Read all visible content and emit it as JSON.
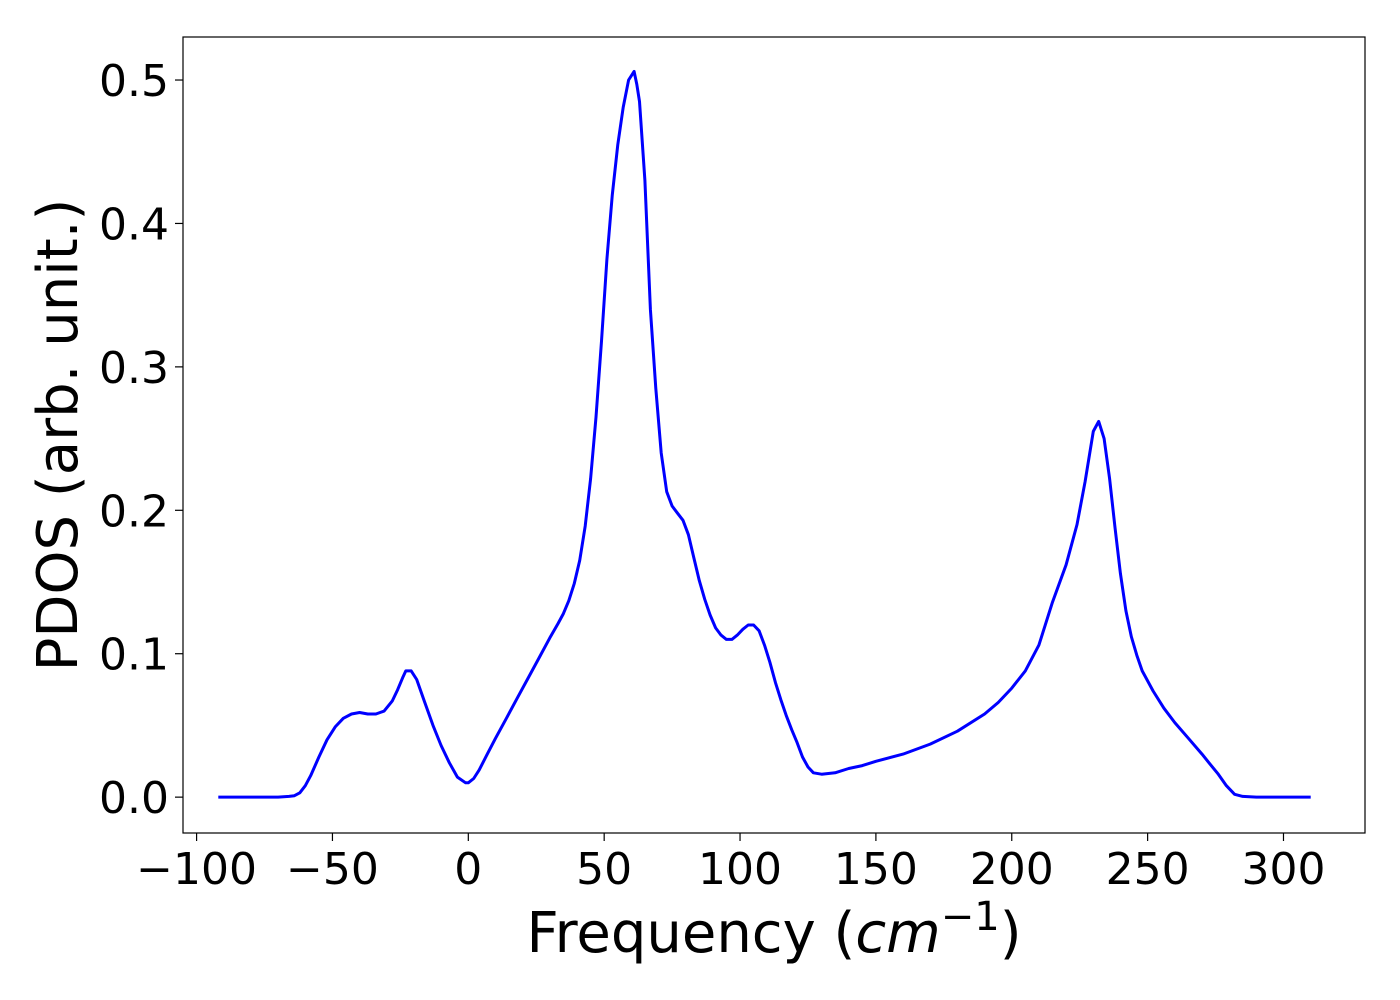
{
  "chart_data": {
    "type": "line",
    "title": "",
    "xlabel": "Frequency (",
    "xlabel_math_base": "cm",
    "xlabel_math_sup": "−1",
    "xlabel_suffix": ")",
    "ylabel": "PDOS (arb. unit.)",
    "xlim": [
      -105,
      330
    ],
    "ylim": [
      -0.025,
      0.53
    ],
    "xticks": [
      -100,
      -50,
      0,
      50,
      100,
      150,
      200,
      250,
      300
    ],
    "xtick_labels": [
      "−100",
      "−50",
      "0",
      "50",
      "100",
      "150",
      "200",
      "250",
      "300"
    ],
    "yticks": [
      0.0,
      0.1,
      0.2,
      0.3,
      0.4,
      0.5
    ],
    "ytick_labels": [
      "0.0",
      "0.1",
      "0.2",
      "0.3",
      "0.4",
      "0.5"
    ],
    "grid": false,
    "legend": "none",
    "series": [
      {
        "color": "#0000ff",
        "x": [
          -92,
          -80,
          -70,
          -66,
          -64,
          -62,
          -60,
          -58,
          -55,
          -52,
          -49,
          -46,
          -43,
          -40,
          -37,
          -34,
          -31,
          -28,
          -26,
          -24,
          -23,
          -21,
          -19,
          -16,
          -13,
          -10,
          -7,
          -4,
          -1,
          0,
          2,
          4,
          7,
          10,
          14,
          18,
          22,
          26,
          30,
          33,
          35,
          37,
          39,
          41,
          43,
          45,
          47,
          49,
          51,
          53,
          55,
          57,
          59,
          61,
          62,
          63,
          65,
          67,
          69,
          71,
          73,
          75,
          77,
          79,
          81,
          83,
          85,
          87,
          89,
          91,
          93,
          95,
          97,
          99,
          101,
          103,
          105,
          107,
          109,
          111,
          113,
          115,
          117,
          119,
          121,
          123,
          125,
          127,
          130,
          135,
          140,
          145,
          150,
          160,
          170,
          180,
          190,
          195,
          200,
          205,
          210,
          215,
          220,
          224,
          227,
          230,
          232,
          234,
          236,
          238,
          240,
          242,
          244,
          246,
          248,
          252,
          256,
          260,
          265,
          270,
          273,
          276,
          279,
          282,
          285,
          290,
          300,
          310
        ],
        "values": [
          0.0,
          0.0,
          0.0,
          0.0005,
          0.001,
          0.003,
          0.008,
          0.015,
          0.028,
          0.04,
          0.049,
          0.055,
          0.058,
          0.059,
          0.058,
          0.058,
          0.06,
          0.067,
          0.075,
          0.084,
          0.088,
          0.088,
          0.082,
          0.066,
          0.05,
          0.036,
          0.024,
          0.014,
          0.01,
          0.01,
          0.013,
          0.019,
          0.03,
          0.041,
          0.055,
          0.069,
          0.083,
          0.097,
          0.111,
          0.121,
          0.128,
          0.137,
          0.149,
          0.165,
          0.189,
          0.222,
          0.265,
          0.318,
          0.375,
          0.42,
          0.455,
          0.481,
          0.5,
          0.506,
          0.497,
          0.485,
          0.43,
          0.34,
          0.285,
          0.24,
          0.213,
          0.203,
          0.198,
          0.193,
          0.183,
          0.167,
          0.151,
          0.138,
          0.127,
          0.118,
          0.113,
          0.11,
          0.11,
          0.113,
          0.117,
          0.12,
          0.12,
          0.116,
          0.106,
          0.094,
          0.08,
          0.068,
          0.057,
          0.047,
          0.038,
          0.028,
          0.021,
          0.017,
          0.016,
          0.017,
          0.02,
          0.022,
          0.025,
          0.03,
          0.037,
          0.046,
          0.058,
          0.066,
          0.076,
          0.088,
          0.106,
          0.136,
          0.162,
          0.19,
          0.22,
          0.255,
          0.262,
          0.25,
          0.222,
          0.188,
          0.156,
          0.13,
          0.112,
          0.099,
          0.088,
          0.074,
          0.062,
          0.052,
          0.041,
          0.03,
          0.023,
          0.016,
          0.008,
          0.002,
          0.0005,
          0.0,
          0.0,
          0.0
        ]
      }
    ]
  }
}
